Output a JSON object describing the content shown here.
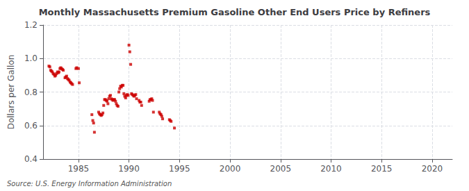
{
  "chart_data": {
    "type": "scatter",
    "title": "Monthly Massachusetts Premium Gasoline Other End Users Price by Refiners",
    "ylabel": "Dollars per Gallon",
    "source": "Source: U.S. Energy Information Administration",
    "color": "#cc0000",
    "marker": "square",
    "grid": true,
    "xlim": [
      1981.5,
      2022
    ],
    "ylim": [
      0.4,
      1.2
    ],
    "xticks": [
      1985,
      1990,
      1995,
      2000,
      2005,
      2010,
      2015,
      2020
    ],
    "yticks": [
      0.4,
      0.6,
      0.8,
      {
        "value": 1.0,
        "label": "1.0"
      },
      1.2
    ],
    "x": [
      1982.08,
      1982.17,
      1982.25,
      1982.33,
      1982.42,
      1982.5,
      1982.58,
      1982.67,
      1982.75,
      1982.83,
      1982.92,
      1983.0,
      1983.08,
      1983.17,
      1983.25,
      1983.33,
      1983.42,
      1983.5,
      1983.67,
      1983.75,
      1983.83,
      1983.92,
      1984.0,
      1984.08,
      1984.17,
      1984.25,
      1984.33,
      1984.42,
      1984.75,
      1984.83,
      1985.0,
      1985.08,
      1986.33,
      1986.42,
      1986.5,
      1986.58,
      1987.0,
      1987.08,
      1987.17,
      1987.25,
      1987.33,
      1987.42,
      1987.5,
      1987.58,
      1987.67,
      1987.75,
      1987.83,
      1987.92,
      1988.0,
      1988.08,
      1988.17,
      1988.25,
      1988.33,
      1988.42,
      1988.5,
      1988.58,
      1988.67,
      1988.75,
      1988.83,
      1988.92,
      1989.0,
      1989.08,
      1989.17,
      1989.25,
      1989.33,
      1989.42,
      1989.5,
      1989.58,
      1989.67,
      1989.75,
      1989.83,
      1989.92,
      1990.0,
      1990.08,
      1990.17,
      1990.25,
      1990.33,
      1990.42,
      1990.5,
      1990.58,
      1990.67,
      1990.75,
      1991.0,
      1991.08,
      1991.17,
      1991.25,
      1992.0,
      1992.08,
      1992.17,
      1992.25,
      1992.33,
      1992.42,
      1993.0,
      1993.08,
      1993.17,
      1993.25,
      1993.33,
      1994.0,
      1994.08,
      1994.17,
      1994.5
    ],
    "values": [
      0.955,
      0.95,
      0.93,
      0.925,
      0.92,
      0.91,
      0.905,
      0.895,
      0.9,
      0.91,
      0.92,
      0.915,
      0.92,
      0.94,
      0.945,
      0.94,
      0.935,
      0.93,
      0.885,
      0.89,
      0.895,
      0.88,
      0.875,
      0.87,
      0.86,
      0.855,
      0.85,
      0.845,
      0.94,
      0.945,
      0.94,
      0.855,
      0.665,
      0.63,
      0.615,
      0.56,
      0.68,
      0.67,
      0.665,
      0.66,
      0.665,
      0.675,
      0.72,
      0.755,
      0.755,
      0.75,
      0.745,
      0.73,
      0.76,
      0.775,
      0.78,
      0.76,
      0.755,
      0.75,
      0.755,
      0.755,
      0.745,
      0.73,
      0.72,
      0.715,
      0.8,
      0.82,
      0.835,
      0.83,
      0.84,
      0.84,
      0.79,
      0.775,
      0.765,
      0.78,
      0.785,
      0.78,
      1.08,
      1.04,
      0.965,
      0.79,
      0.785,
      0.78,
      0.775,
      0.78,
      0.785,
      0.76,
      0.75,
      0.74,
      0.74,
      0.72,
      0.745,
      0.755,
      0.755,
      0.76,
      0.75,
      0.68,
      0.68,
      0.67,
      0.665,
      0.655,
      0.64,
      0.635,
      0.63,
      0.625,
      0.585
    ]
  }
}
